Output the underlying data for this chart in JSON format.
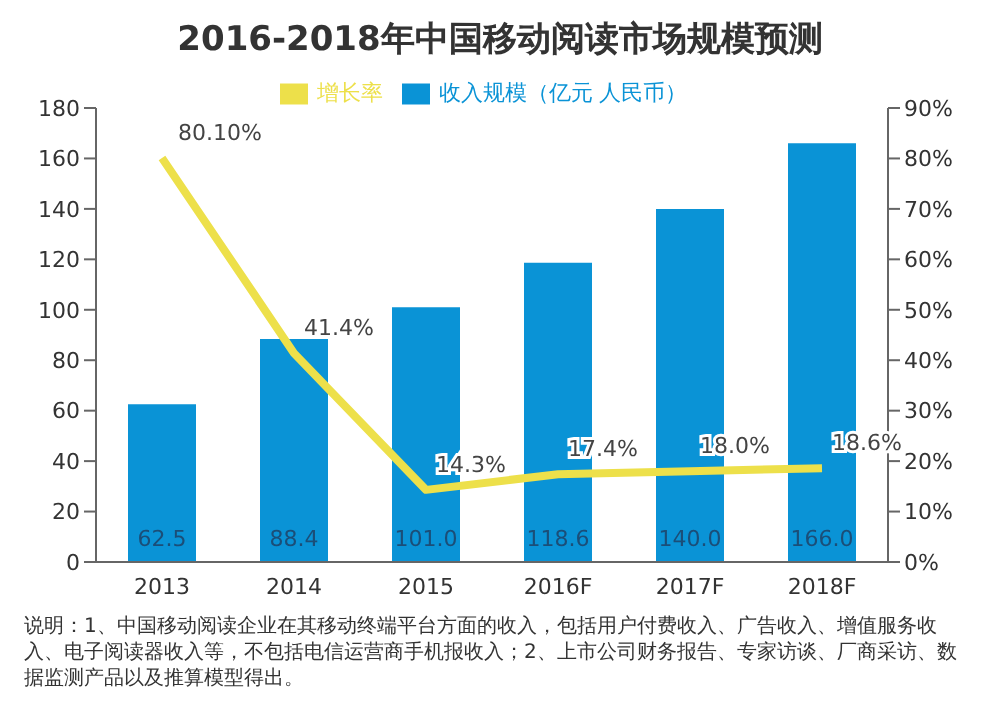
{
  "chart_data": {
    "type": "bar",
    "title": "2016-2018年中国移动阅读市场规模预测",
    "categories": [
      "2013",
      "2014",
      "2015",
      "2016F",
      "2017F",
      "2018F"
    ],
    "series": [
      {
        "name": "收入规模（亿元 人民币）",
        "color": "#0a93d6",
        "values": [
          62.5,
          88.4,
          101.0,
          118.6,
          140.0,
          166.0
        ],
        "value_labels": [
          "62.5",
          "88.4",
          "101.0",
          "118.6",
          "140.0",
          "166.0"
        ]
      },
      {
        "name": "增长率",
        "type": "line",
        "axis": "y2",
        "color": "#ede04a",
        "values": [
          80.1,
          41.4,
          14.3,
          17.4,
          18.0,
          18.6
        ],
        "value_labels": [
          "80.10%",
          "41.4%",
          "14.3%",
          "17.4%",
          "18.0%",
          "18.6%"
        ]
      }
    ],
    "ylim": [
      0,
      180
    ],
    "yticks": [
      0,
      20,
      40,
      60,
      80,
      100,
      120,
      140,
      160,
      180
    ],
    "y2lim": [
      0,
      90
    ],
    "y2ticks": [
      {
        "value": 0,
        "label": "0%"
      },
      {
        "value": 10,
        "label": "10%"
      },
      {
        "value": 20,
        "label": "20%"
      },
      {
        "value": 30,
        "label": "30%"
      },
      {
        "value": 40,
        "label": "40%"
      },
      {
        "value": 50,
        "label": "50%"
      },
      {
        "value": 60,
        "label": "60%"
      },
      {
        "value": 70,
        "label": "70%"
      },
      {
        "value": 80,
        "label": "80%"
      },
      {
        "value": 90,
        "label": "90%"
      }
    ],
    "grid": false,
    "legend": "top",
    "marker": "none",
    "line_style": "solid",
    "annotations": [
      "说明：1、中国移动阅读企业在其移动终端平台方面的收入，包括用户付费收入、广告收入、增值服务收入、电子阅读器收入等，不包括电信运营商手机报收入；2、上市公司财务报告、专家访谈、厂商采访、数据监测产品以及推算模型得出。"
    ]
  }
}
